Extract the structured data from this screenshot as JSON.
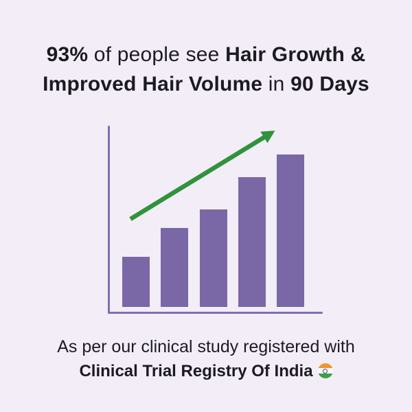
{
  "background": "#f2edf6",
  "text_color": "#1d1b22",
  "headline": {
    "line1": [
      {
        "text": "93%",
        "bold": true
      },
      {
        "text": " of people see ",
        "bold": false
      },
      {
        "text": "Hair Growth &",
        "bold": true
      }
    ],
    "line2": [
      {
        "text": "Improved Hair Volume",
        "bold": true
      },
      {
        "text": " in ",
        "bold": false
      },
      {
        "text": "90 Days",
        "bold": true
      }
    ]
  },
  "chart_data": {
    "type": "bar",
    "title": "",
    "xlabel": "",
    "ylabel": "",
    "values": [
      33,
      52,
      64,
      85,
      100
    ],
    "values_unit": "relative percent of tallest bar (no axis labels shown)",
    "ylim": [
      0,
      124
    ],
    "grid": false,
    "legend": false,
    "bar_color": "#7968a5",
    "axis_color": "#7e6fb1",
    "trend_arrow": {
      "color": "#31923c",
      "direction": "up-right"
    }
  },
  "footnote": {
    "line1": "As per our clinical study registered with",
    "line2": "Clinical Trial Registry Of India",
    "flag_icon": "india-flag",
    "flag_colors": {
      "saffron": "#f0952e",
      "white": "#f6f6f6",
      "green": "#3f9e45",
      "chakra": "#3d4fa1"
    }
  }
}
